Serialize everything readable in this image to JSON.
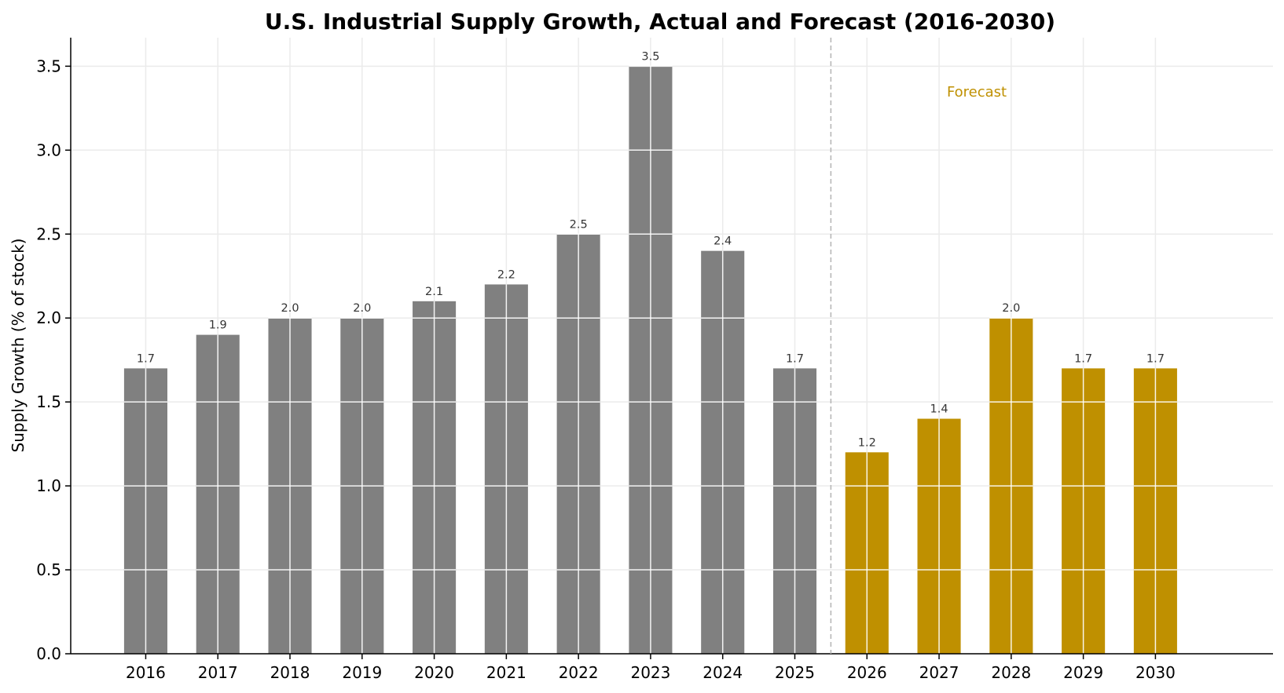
{
  "chart_data": {
    "type": "bar",
    "title": "U.S. Industrial Supply Growth, Actual and Forecast (2016-2030)",
    "xlabel": "",
    "ylabel": "Supply Growth (% of stock)",
    "categories": [
      "2016",
      "2017",
      "2018",
      "2019",
      "2020",
      "2021",
      "2022",
      "2023",
      "2024",
      "2025",
      "2026",
      "2027",
      "2028",
      "2029",
      "2030"
    ],
    "values": [
      1.7,
      1.9,
      2.0,
      2.0,
      2.1,
      2.2,
      2.5,
      3.5,
      2.4,
      1.7,
      1.2,
      1.4,
      2.0,
      1.7,
      1.7
    ],
    "data_labels": [
      "1.7",
      "1.9",
      "2.0",
      "2.0",
      "2.1",
      "2.2",
      "2.5",
      "3.5",
      "2.4",
      "1.7",
      "1.2",
      "1.4",
      "2.0",
      "1.7",
      "1.7"
    ],
    "forecast_start_index": 10,
    "ylim": [
      0,
      3.67
    ],
    "yticks": [
      0.0,
      0.5,
      1.0,
      1.5,
      2.0,
      2.5,
      3.0,
      3.5
    ],
    "ytick_labels": [
      "0.0",
      "0.5",
      "1.0",
      "1.5",
      "2.0",
      "2.5",
      "3.0",
      "3.5"
    ],
    "grid": true,
    "annotation": "Forecast",
    "colors": {
      "actual": "#808080",
      "forecast": "#bf9000",
      "grid": "#ebebeb",
      "divider": "#b3b3b3",
      "annotation": "#bf9000"
    }
  }
}
